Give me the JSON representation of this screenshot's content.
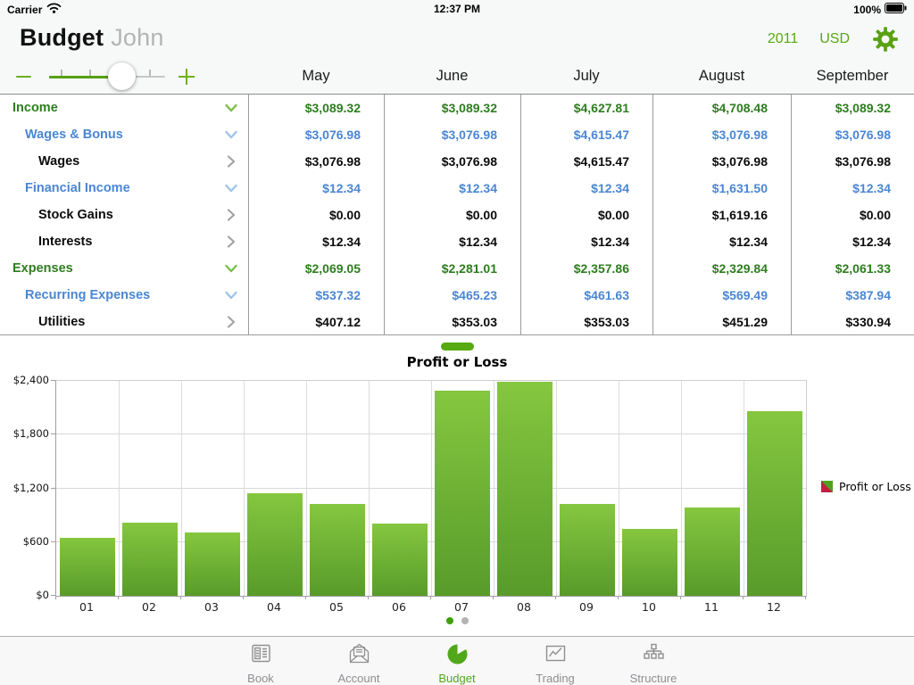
{
  "status_bar": {
    "carrier": "Carrier",
    "time": "12:37 PM",
    "battery": "100%"
  },
  "header": {
    "title": "Budget",
    "subtitle": "John",
    "year": "2011",
    "currency": "USD"
  },
  "columns": [
    "May",
    "June",
    "July",
    "August",
    "September"
  ],
  "table": {
    "rows": [
      {
        "label": "Income",
        "level": 1,
        "expandable": true,
        "values": [
          "$3,089.32",
          "$3,089.32",
          "$4,627.81",
          "$4,708.48",
          "$3,089.32"
        ]
      },
      {
        "label": "Wages & Bonus",
        "level": 2,
        "expandable": true,
        "values": [
          "$3,076.98",
          "$3,076.98",
          "$4,615.47",
          "$3,076.98",
          "$3,076.98"
        ]
      },
      {
        "label": "Wages",
        "level": 3,
        "expandable": false,
        "values": [
          "$3,076.98",
          "$3,076.98",
          "$4,615.47",
          "$3,076.98",
          "$3,076.98"
        ]
      },
      {
        "label": "Financial Income",
        "level": 2,
        "expandable": true,
        "values": [
          "$12.34",
          "$12.34",
          "$12.34",
          "$1,631.50",
          "$12.34"
        ]
      },
      {
        "label": "Stock Gains",
        "level": 3,
        "expandable": false,
        "values": [
          "$0.00",
          "$0.00",
          "$0.00",
          "$1,619.16",
          "$0.00"
        ]
      },
      {
        "label": "Interests",
        "level": 3,
        "expandable": false,
        "values": [
          "$12.34",
          "$12.34",
          "$12.34",
          "$12.34",
          "$12.34"
        ]
      },
      {
        "label": "Expenses",
        "level": 1,
        "expandable": true,
        "values": [
          "$2,069.05",
          "$2,281.01",
          "$2,357.86",
          "$2,329.84",
          "$2,061.33"
        ]
      },
      {
        "label": "Recurring Expenses",
        "level": 2,
        "expandable": true,
        "values": [
          "$537.32",
          "$465.23",
          "$461.63",
          "$569.49",
          "$387.94"
        ]
      },
      {
        "label": "Utilities",
        "level": 3,
        "expandable": false,
        "values": [
          "$407.12",
          "$353.03",
          "$353.03",
          "$451.29",
          "$330.94"
        ]
      }
    ]
  },
  "chart_data": {
    "type": "bar",
    "title": "Profit or Loss",
    "categories": [
      "01",
      "02",
      "03",
      "04",
      "05",
      "06",
      "07",
      "08",
      "09",
      "10",
      "11",
      "12"
    ],
    "values": [
      650,
      820,
      710,
      1150,
      1025,
      805,
      2290,
      2390,
      1025,
      750,
      990,
      2060
    ],
    "xlabel": "",
    "ylabel": "",
    "ylim": [
      0,
      2400
    ],
    "yticks": [
      0,
      600,
      1200,
      1800,
      2400
    ],
    "ytick_labels": [
      "$0",
      "$600",
      "$1,200",
      "$1,800",
      "$2,400"
    ],
    "grid": true,
    "legend_position": "right",
    "legend": [
      {
        "label": "Profit or Loss",
        "color_main": "#4da321",
        "color_alt": "#c22040"
      }
    ],
    "bar_color_top": "#85c73f",
    "bar_color_bottom": "#589b2a"
  },
  "pager": {
    "dot_count": 2,
    "active_index": 0
  },
  "tab_bar": {
    "items": [
      {
        "label": "Book",
        "icon": "book-icon",
        "active": false
      },
      {
        "label": "Account",
        "icon": "account-icon",
        "active": false
      },
      {
        "label": "Budget",
        "icon": "budget-icon",
        "active": true
      },
      {
        "label": "Trading",
        "icon": "trading-icon",
        "active": false
      },
      {
        "label": "Structure",
        "icon": "structure-icon",
        "active": false
      }
    ]
  },
  "colors": {
    "accent_green": "#58a913",
    "table_green": "#2e7d1f",
    "table_blue": "#4a86d3",
    "inactive_gray": "#8e8e93"
  }
}
